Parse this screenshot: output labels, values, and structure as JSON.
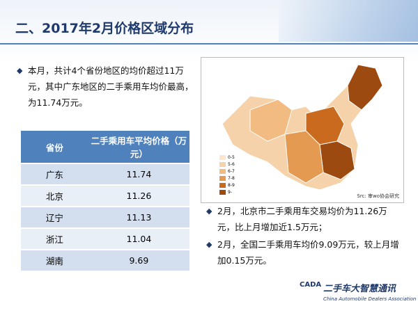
{
  "header": {
    "title": "二、2017年2月价格区域分布"
  },
  "intro": {
    "text": "本月，共计4个省份地区的均价超过11万元，其中广东地区的二手乘用车均价最高，为11.74万元。"
  },
  "table": {
    "headers": [
      "省份",
      "二手乘用车平均价格（万元）"
    ],
    "rows": [
      [
        "广东",
        "11.74"
      ],
      [
        "北京",
        "11.26"
      ],
      [
        "辽宁",
        "11.13"
      ],
      [
        "浙江",
        "11.04"
      ],
      [
        "湖南",
        "9.69"
      ]
    ]
  },
  "map": {
    "legend": [
      "0-5",
      "5-6",
      "6-7",
      "7-8",
      "8-9",
      "9-"
    ],
    "source": "Src: 审wo协会研究"
  },
  "notes": [
    "2月，北京市二手乘用车交易均价为11.26万元，比上月增加近1.5万元；",
    "2月，全国二手乘用车均价9.09万元，较上月增加0.15万元。"
  ],
  "logo": {
    "name": "二手车大智慧通讯",
    "abbr": "CADA",
    "english": "China Automobile Dealers Association"
  }
}
